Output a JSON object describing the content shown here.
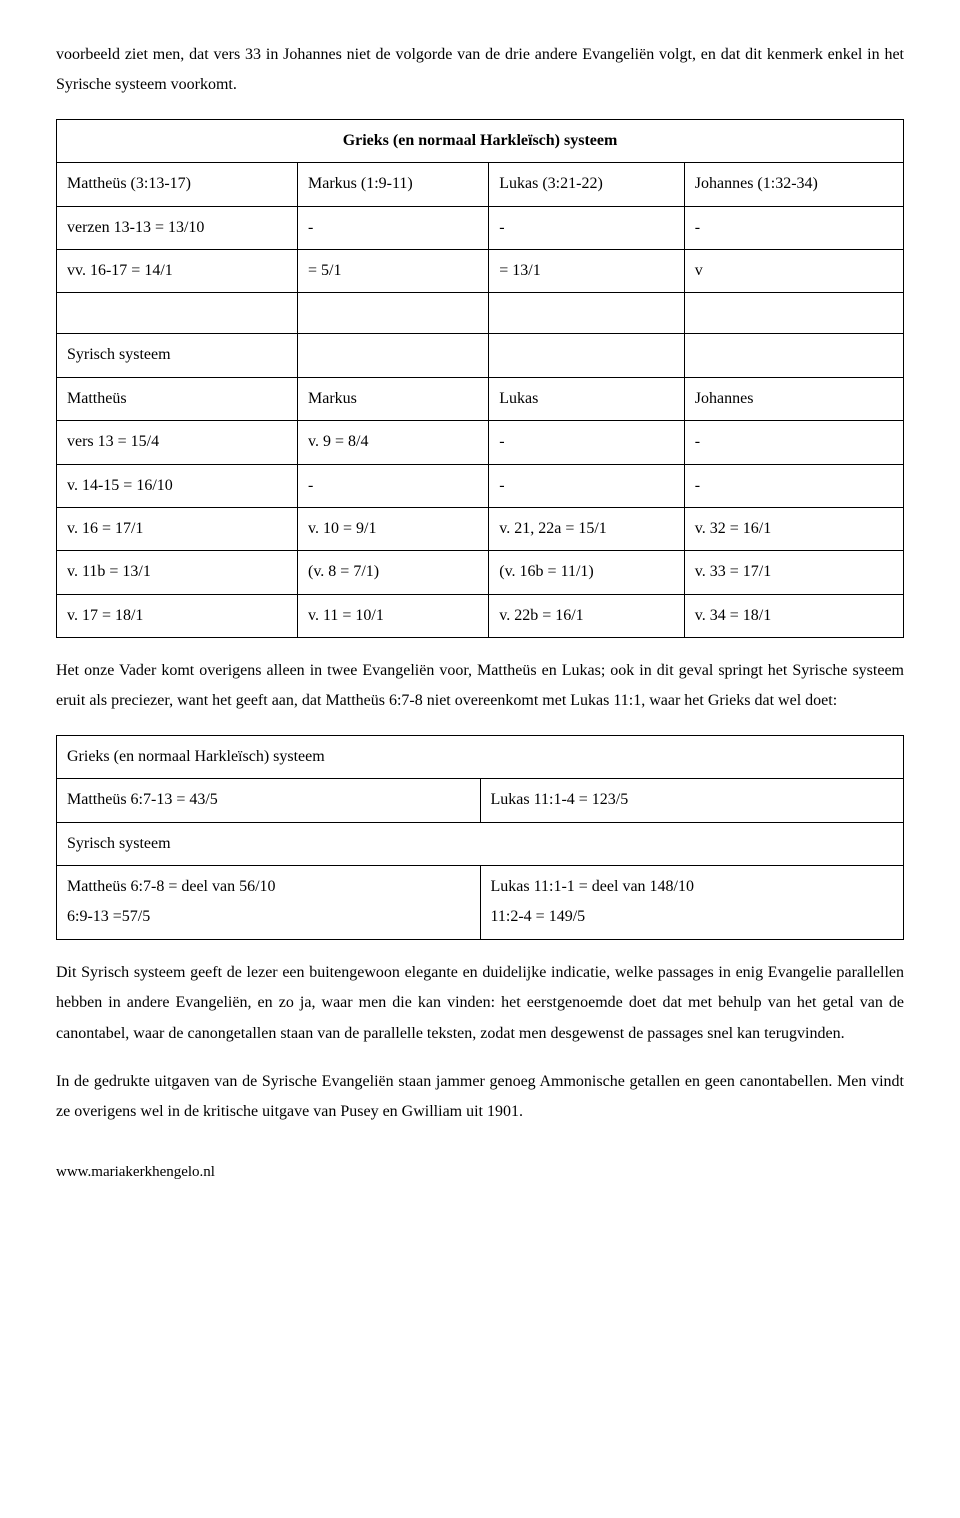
{
  "para1": "voorbeeld ziet men, dat vers 33 in Johannes niet de volgorde van de drie andere Evangeliën volgt, en dat dit kenmerk enkel in het Syrische systeem voorkomt.",
  "table1": {
    "title": "Grieks (en normaal Harkleïsch) systeem",
    "r1": {
      "c1": "Mattheüs (3:13-17)",
      "c2": "Markus (1:9-11)",
      "c3": "Lukas (3:21-22)",
      "c4": "Johannes (1:32-34)"
    },
    "r2": {
      "c1": "verzen 13-13 = 13/10",
      "c2": "-",
      "c3": "-",
      "c4": "-"
    },
    "r3": {
      "c1": "vv. 16-17 = 14/1",
      "c2": "= 5/1",
      "c3": "= 13/1",
      "c4": "v"
    },
    "r4": {
      "c1": "Syrisch systeem",
      "c2": "",
      "c3": "",
      "c4": ""
    },
    "r5": {
      "c1": "Mattheüs",
      "c2": "Markus",
      "c3": "Lukas",
      "c4": "Johannes"
    },
    "r6": {
      "c1": "vers 13 = 15/4",
      "c2": "v. 9 = 8/4",
      "c3": "-",
      "c4": "-"
    },
    "r7": {
      "c1": "v. 14-15 = 16/10",
      "c2": "-",
      "c3": "-",
      "c4": "-"
    },
    "r8": {
      "c1": "v. 16 = 17/1",
      "c2": "v. 10 = 9/1",
      "c3": "v. 21, 22a = 15/1",
      "c4": "v. 32 = 16/1"
    },
    "r9": {
      "c1": "v. 11b = 13/1",
      "c2": "(v. 8 = 7/1)",
      "c3": "(v. 16b = 11/1)",
      "c4": "v. 33 = 17/1"
    },
    "r10": {
      "c1": "v. 17 = 18/1",
      "c2": "v. 11 = 10/1",
      "c3": "v. 22b = 16/1",
      "c4": "v. 34 = 18/1"
    }
  },
  "para2": "Het onze Vader komt overigens alleen in twee Evangeliën voor, Mattheüs en Lukas; ook in dit geval springt het Syrische systeem eruit als preciezer, want het geeft aan, dat Mattheüs 6:7-8 niet overeenkomt met Lukas 11:1, waar het Grieks dat wel doet:",
  "table2": {
    "r1": {
      "c1": "Grieks (en normaal Harkleïsch) systeem"
    },
    "r2": {
      "c1": "Mattheüs 6:7-13 = 43/5",
      "c2": "Lukas 11:1-4 = 123/5"
    },
    "r3": {
      "c1": "Syrisch systeem"
    },
    "r4": {
      "c1a": "Mattheüs 6:7-8 = deel van 56/10",
      "c1b": "6:9-13 =57/5",
      "c2a": "Lukas 11:1-1 = deel van 148/10",
      "c2b": "11:2-4 = 149/5"
    }
  },
  "para3": "Dit Syrisch systeem geeft de lezer een buitengewoon elegante en duidelijke indicatie, welke passages in enig Evangelie parallellen hebben in andere Evangeliën, en zo ja, waar men die kan vinden: het eerstgenoemde doet dat met behulp van het getal van de canontabel, waar de canongetallen staan van de parallelle teksten, zodat men desgewenst de passages snel kan terugvinden.",
  "para4": "In de gedrukte uitgaven van de Syrische Evangeliën staan jammer genoeg Ammonische getallen en geen canontabellen. Men vindt ze overigens wel in de kritische uitgave van Pusey en Gwilliam uit 1901.",
  "footer": "www.mariakerkhengelo.nl"
}
